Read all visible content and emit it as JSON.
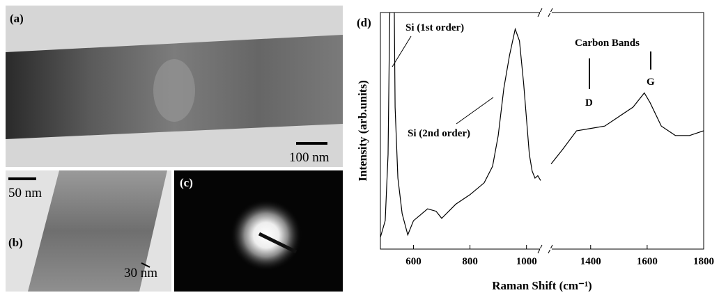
{
  "panels": {
    "a": {
      "label": "(a)",
      "scale_bar": "100 nm"
    },
    "b": {
      "label": "(b)",
      "scale_bar": "50 nm",
      "annotation": "30 nm"
    },
    "c": {
      "label": "(c)"
    }
  },
  "chart_data": {
    "type": "line",
    "panel_label": "(d)",
    "x_label": "Raman Shift (cm⁻¹)",
    "y_label": "Intensity (arb.units)",
    "annotations": [
      "Si (1st order)",
      "Si (2nd order)",
      "Carbon Bands",
      "D",
      "G"
    ],
    "color": "#000000",
    "x": [
      483,
      500,
      510,
      515,
      520,
      530,
      535,
      545,
      560,
      580,
      600,
      620,
      650,
      680,
      700,
      750,
      800,
      850,
      880,
      900,
      920,
      940,
      960,
      975,
      990,
      1000,
      1010,
      1020,
      1030,
      1040,
      1050,
      1150,
      1260,
      1300,
      1350,
      1400,
      1450,
      1500,
      1550,
      1590,
      1610,
      1650,
      1700,
      1750,
      1800
    ],
    "values": [
      5,
      12,
      40,
      90,
      130,
      130,
      60,
      30,
      15,
      6,
      12,
      14,
      17,
      16,
      13,
      19,
      23,
      28,
      35,
      48,
      68,
      82,
      93,
      88,
      70,
      55,
      40,
      33,
      30,
      31,
      29,
      null,
      36,
      42,
      50,
      51,
      52,
      56,
      60,
      66,
      62,
      52,
      48,
      48,
      50
    ],
    "xlim": [
      483,
      1800
    ],
    "xbreak": [
      1050,
      1260
    ],
    "xticks": [
      600,
      800,
      1000,
      1400,
      1600,
      1800
    ],
    "ylim": [
      0,
      100
    ]
  }
}
